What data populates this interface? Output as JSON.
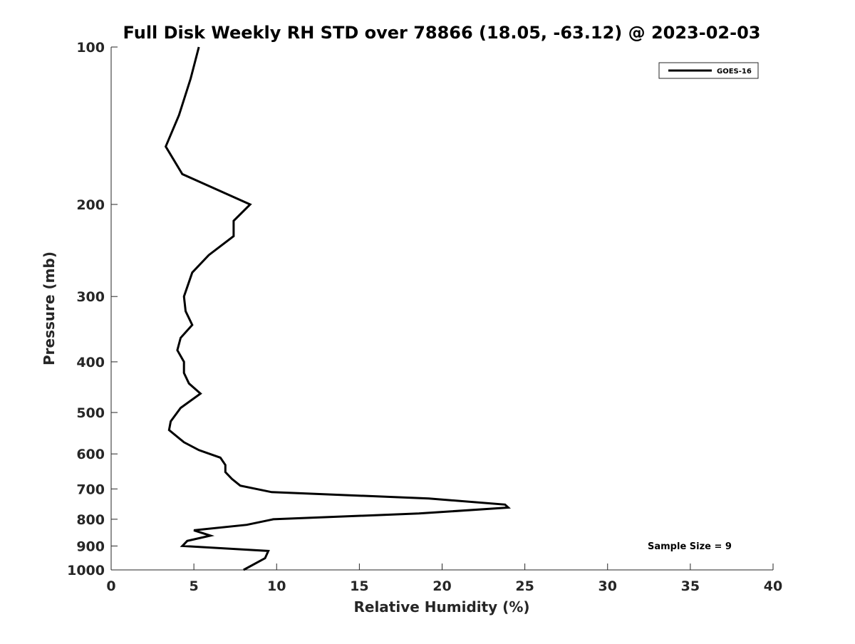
{
  "chart_data": {
    "type": "line",
    "title": "Full Disk Weekly RH STD over 78866 (18.05, -63.12) @ 2023-02-03",
    "xlabel": "Relative Humidity (%)",
    "ylabel": "Pressure (mb)",
    "xlim": [
      0,
      40
    ],
    "ylim": [
      100,
      1000
    ],
    "y_scale": "log",
    "y_reversed": true,
    "x_ticks": [
      0,
      5,
      10,
      15,
      20,
      25,
      30,
      35,
      40
    ],
    "y_ticks": [
      100,
      200,
      300,
      400,
      500,
      600,
      700,
      800,
      900,
      1000
    ],
    "legend_position": "top-right",
    "series": [
      {
        "name": "GOES-16",
        "color": "#000000",
        "x": [
          5.3,
          4.8,
          4.1,
          3.3,
          4.3,
          8.4,
          7.4,
          7.4,
          5.9,
          4.9,
          4.4,
          4.5,
          4.9,
          4.2,
          4.0,
          4.4,
          4.4,
          4.7,
          5.4,
          4.2,
          3.6,
          3.5,
          4.4,
          5.3,
          6.6,
          6.9,
          6.9,
          7.3,
          7.8,
          9.7,
          19.2,
          23.8,
          24.0,
          18.6,
          9.8,
          8.2,
          5.0,
          6.0,
          4.6,
          4.3,
          9.5,
          9.3,
          8.0
        ],
        "y": [
          100,
          115,
          135,
          155,
          175,
          200,
          215,
          230,
          250,
          270,
          300,
          320,
          340,
          360,
          380,
          400,
          420,
          440,
          460,
          490,
          520,
          540,
          570,
          590,
          610,
          630,
          650,
          670,
          690,
          710,
          730,
          750,
          760,
          780,
          800,
          820,
          840,
          860,
          880,
          900,
          920,
          950,
          1000
        ]
      }
    ],
    "annotation": "Sample Size = 9"
  }
}
